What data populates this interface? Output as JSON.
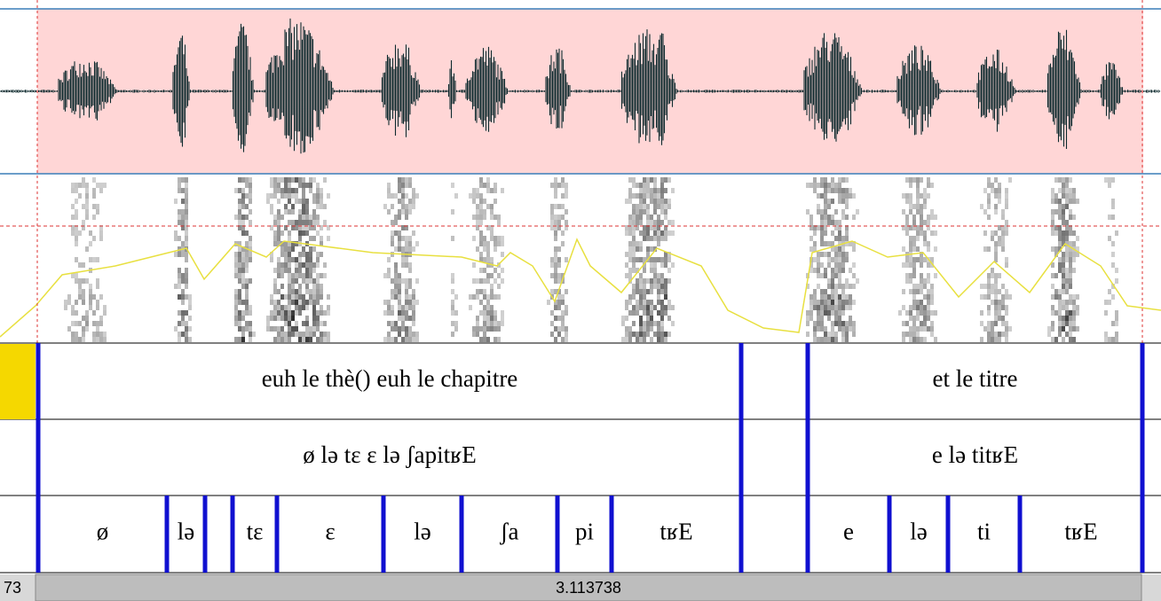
{
  "tiers": [
    {
      "intervals": [
        "euh le thè() euh le chapitre",
        "et le titre"
      ]
    },
    {
      "intervals": [
        "ø lə tɛ ɛ lə ʃapitʁE",
        "e lə titʁE"
      ]
    },
    {
      "intervals": [
        "ø",
        "lə",
        "tɛ",
        "ɛ",
        "lə",
        "ʃa",
        "pi",
        "tʁE",
        "e",
        "lə",
        "ti",
        "tʁE"
      ]
    }
  ],
  "status": {
    "left": "73",
    "center": "3.113738"
  }
}
